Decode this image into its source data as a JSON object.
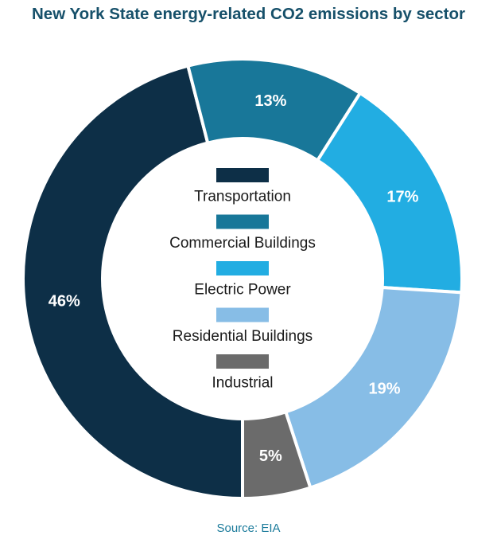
{
  "chart_data": {
    "type": "pie",
    "title": "New York State energy-related CO2 emissions by sector",
    "categories": [
      "Transportation",
      "Commercial Buildings",
      "Electric Power",
      "Residential Buildings",
      "Industrial"
    ],
    "values": [
      46,
      13,
      17,
      19,
      5
    ],
    "value_labels": [
      "46%",
      "13%",
      "17%",
      "19%",
      "5%"
    ],
    "colors": [
      "#0d2f47",
      "#187799",
      "#22ade2",
      "#87bde6",
      "#6b6b6b"
    ],
    "legend": "center",
    "donut": true
  },
  "source": "Source: EIA"
}
